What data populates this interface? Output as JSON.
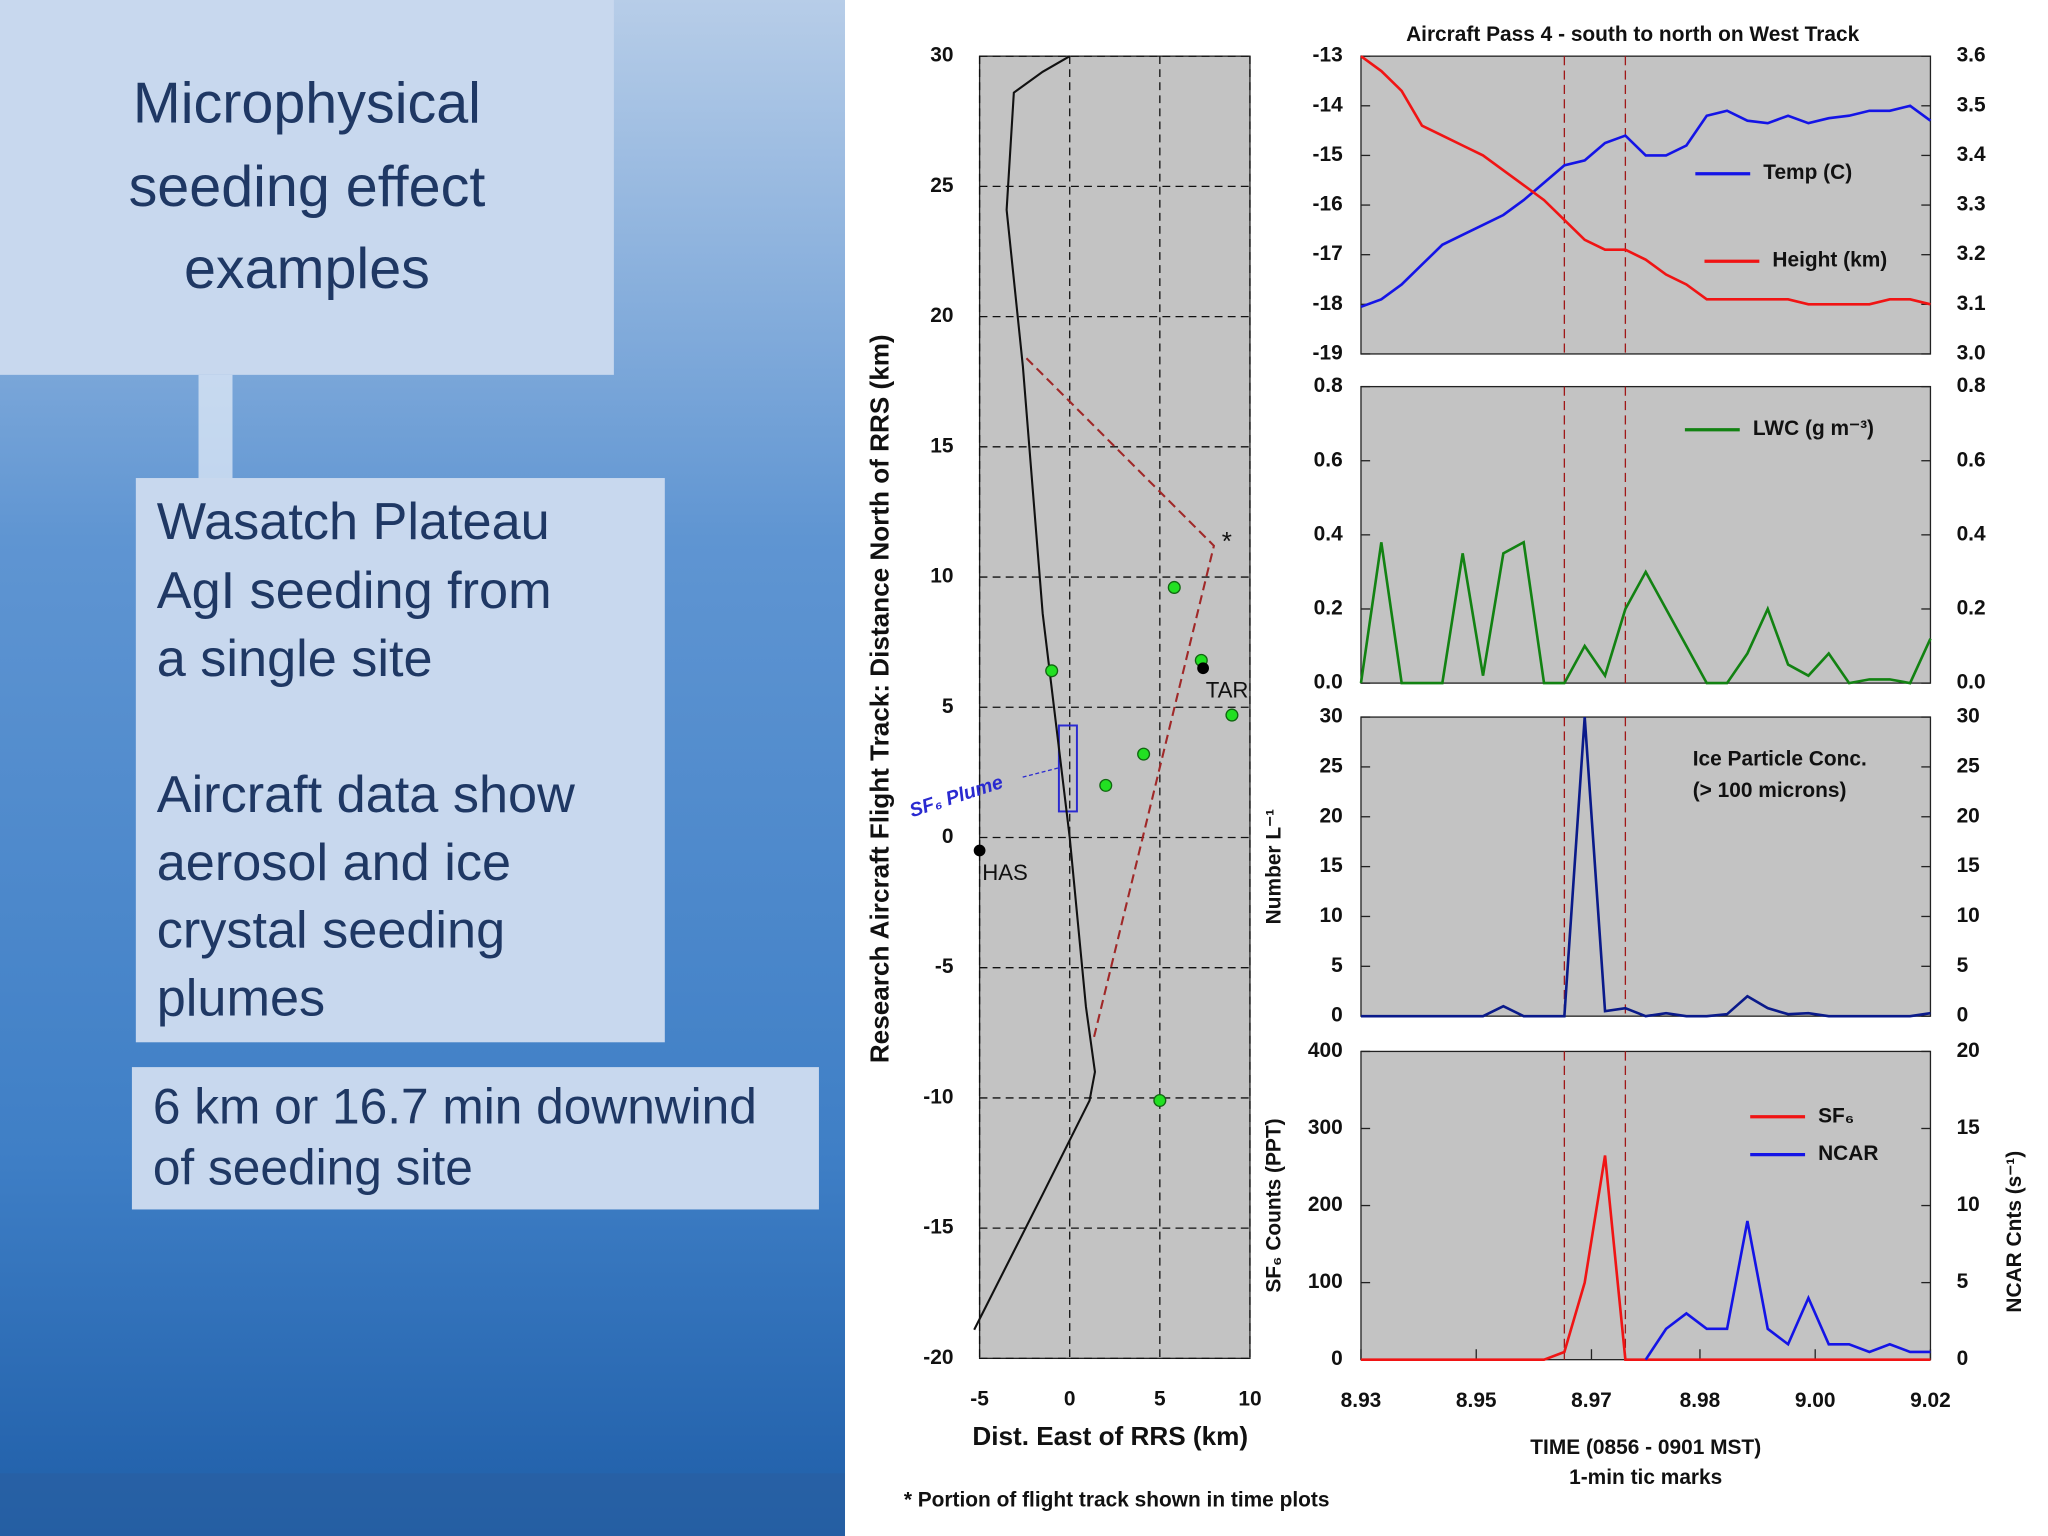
{
  "slide": {
    "title": [
      "Microphysical",
      "seeding effect",
      "examples"
    ],
    "box1": [
      "Wasatch Plateau",
      "AgI seeding from",
      "a single site"
    ],
    "box2": [
      "Aircraft data show",
      "aerosol and ice",
      "crystal seeding",
      "plumes"
    ],
    "box3": [
      "6 km or 16.7 min downwind",
      "of seeding site"
    ],
    "footnote": "* Portion of flight track shown in time plots"
  },
  "chart_data": [
    {
      "type": "track",
      "ylabel": "Research Aircraft Flight Track: Distance North of RRS (km)",
      "xlabel": "Dist. East of RRS (km)",
      "xlim": [
        -5,
        10
      ],
      "ylim": [
        -20,
        30
      ],
      "xticks": [
        -5,
        0,
        5,
        10
      ],
      "yticks": [
        30,
        25,
        20,
        15,
        10,
        5,
        0,
        -5,
        -10,
        -15,
        -20
      ],
      "grid": true,
      "series": [
        {
          "style": "line",
          "color": "#111111",
          "x": [
            -5.3,
            -1.5,
            1.1,
            1.4,
            0.9,
            0,
            -1.5,
            -2.6,
            -3.5,
            -3.1,
            -1.5,
            0
          ],
          "values": [
            -18.9,
            -13.7,
            -10.1,
            -9.0,
            -6.5,
            0,
            8.6,
            18.1,
            24.1,
            28.6,
            29.4,
            30
          ]
        },
        {
          "style": "dashed",
          "color": "#a02828",
          "x": [
            -2.4,
            8,
            1.3
          ],
          "values": [
            18.4,
            11.2,
            -7.8
          ],
          "vertex_label": "*"
        },
        {
          "style": "points",
          "color": "#22e022",
          "x": [
            -1,
            5.8,
            7.3,
            4.1,
            2,
            9,
            5
          ],
          "values": [
            6.4,
            9.6,
            6.8,
            3.2,
            2,
            4.7,
            -10.1
          ]
        }
      ],
      "sites": [
        {
          "label": "HAS",
          "x": -5,
          "y": -0.5
        },
        {
          "label": "TAR",
          "x": 7.4,
          "y": 6.5
        }
      ],
      "plume": {
        "label": "SF₆ Plume",
        "x": [
          -0.6,
          0.4
        ],
        "y": [
          1.0,
          4.3
        ]
      }
    },
    {
      "type": "timeseries",
      "title": "Aircraft Pass 4 - south to north on West Track",
      "x": [
        8.933,
        8.936,
        8.939,
        8.942,
        8.945,
        8.948,
        8.951,
        8.954,
        8.957,
        8.96,
        8.963,
        8.966,
        8.969,
        8.972,
        8.975,
        8.978,
        8.981,
        8.984,
        8.987,
        8.99,
        8.993,
        8.996,
        8.999,
        9.002,
        9.005,
        9.008,
        9.011,
        9.014,
        9.017
      ],
      "xlim": [
        8.933,
        9.017
      ],
      "ylim": [
        -19,
        -13
      ],
      "yticks": [
        -13,
        -14,
        -15,
        -16,
        -17,
        -18,
        -19
      ],
      "y2lim": [
        3.0,
        3.6
      ],
      "y2ticks": [
        3.6,
        3.5,
        3.4,
        3.3,
        3.2,
        3.1,
        {
          "value": 3.0,
          "label": "3.0"
        }
      ],
      "markers": [
        8.963,
        8.972
      ],
      "series": [
        {
          "name": "Temp (C)",
          "color": "#1414e6",
          "values": [
            -18.05,
            -17.9,
            -17.6,
            -17.2,
            -16.8,
            -16.6,
            -16.4,
            -16.2,
            -15.9,
            -15.55,
            -15.2,
            -15.1,
            -14.75,
            -14.6,
            -15.0,
            -15.0,
            -14.8,
            -14.2,
            -14.1,
            -14.3,
            -14.35,
            -14.2,
            -14.35,
            -14.25,
            -14.2,
            -14.1,
            -14.1,
            -14.0,
            -14.3
          ]
        },
        {
          "name": "Height (km)",
          "color": "#f01414",
          "axis": "y2",
          "values": [
            3.6,
            3.57,
            3.53,
            3.46,
            3.44,
            3.42,
            3.4,
            3.37,
            3.34,
            3.31,
            3.27,
            3.23,
            3.21,
            3.21,
            3.19,
            3.16,
            3.14,
            3.11,
            3.11,
            3.11,
            3.11,
            3.11,
            3.1,
            3.1,
            3.1,
            3.1,
            3.11,
            3.11,
            3.1
          ]
        }
      ]
    },
    {
      "type": "timeseries",
      "x": [
        8.933,
        8.936,
        8.939,
        8.942,
        8.945,
        8.948,
        8.951,
        8.954,
        8.957,
        8.96,
        8.963,
        8.966,
        8.969,
        8.972,
        8.975,
        8.978,
        8.981,
        8.984,
        8.987,
        8.99,
        8.993,
        8.996,
        8.999,
        9.002,
        9.005,
        9.008,
        9.011,
        9.014,
        9.017
      ],
      "xlim": [
        8.933,
        9.017
      ],
      "ylim": [
        0,
        0.8
      ],
      "yticks": [
        0.8,
        0.6,
        0.4,
        0.2,
        {
          "value": 0,
          "label": "0.0"
        }
      ],
      "y2lim": [
        0,
        0.8
      ],
      "y2ticks": [
        0.8,
        0.6,
        0.4,
        0.2,
        {
          "value": 0,
          "label": "0.0"
        }
      ],
      "markers": [
        8.963,
        8.972
      ],
      "series": [
        {
          "name": "LWC (g m⁻³)",
          "color": "#128212",
          "values": [
            0,
            0.38,
            0,
            0,
            0,
            0.35,
            0.02,
            0.35,
            0.38,
            0,
            0,
            0.1,
            0.02,
            0.2,
            0.3,
            0.2,
            0.1,
            0,
            0,
            0.08,
            0.2,
            0.05,
            0.02,
            0.08,
            0,
            0.01,
            0.01,
            0,
            0.12
          ]
        }
      ]
    },
    {
      "type": "timeseries",
      "ylabel": "Number L⁻¹",
      "annotations": [
        "Ice Particle Conc.",
        "(> 100 microns)"
      ],
      "x": [
        8.933,
        8.936,
        8.939,
        8.942,
        8.945,
        8.948,
        8.951,
        8.954,
        8.957,
        8.96,
        8.963,
        8.966,
        8.969,
        8.972,
        8.975,
        8.978,
        8.981,
        8.984,
        8.987,
        8.99,
        8.993,
        8.996,
        8.999,
        9.002,
        9.005,
        9.008,
        9.011,
        9.014,
        9.017
      ],
      "xlim": [
        8.933,
        9.017
      ],
      "ylim": [
        0,
        30
      ],
      "yticks": [
        30,
        25,
        20,
        15,
        10,
        5,
        0
      ],
      "y2lim": [
        0,
        30
      ],
      "y2ticks": [
        30,
        25,
        20,
        15,
        10,
        5,
        0
      ],
      "markers": [
        8.963,
        8.972
      ],
      "series": [
        {
          "color": "#0a1a8a",
          "values": [
            0,
            0,
            0,
            0,
            0,
            0,
            0,
            1,
            0,
            0,
            0,
            30,
            0.5,
            0.8,
            0,
            0.3,
            0,
            0,
            0.2,
            2,
            0.8,
            0.2,
            0.3,
            0,
            0,
            0,
            0,
            0,
            0.3
          ]
        }
      ]
    },
    {
      "type": "timeseries",
      "ylabel": "SF₆ Counts (PPT)",
      "y2label": "NCAR Cnts (s⁻¹)",
      "xlabel": [
        "TIME (0856 - 0901 MST)",
        "1-min tic marks"
      ],
      "x": [
        8.933,
        8.936,
        8.939,
        8.942,
        8.945,
        8.948,
        8.951,
        8.954,
        8.957,
        8.96,
        8.963,
        8.966,
        8.969,
        8.972,
        8.975,
        8.978,
        8.981,
        8.984,
        8.987,
        8.99,
        8.993,
        8.996,
        8.999,
        9.002,
        9.005,
        9.008,
        9.011,
        9.014,
        9.017
      ],
      "xlim": [
        8.933,
        9.017
      ],
      "xticks": [
        {
          "value": 8.933,
          "label": "8.93"
        },
        8.95,
        {
          "value": 8.967,
          "label": "8.97"
        },
        {
          "value": 8.983,
          "label": "8.98"
        },
        {
          "value": 9.0,
          "label": "9.00"
        },
        {
          "value": 9.017,
          "label": "9.02"
        }
      ],
      "ylim": [
        0,
        400
      ],
      "yticks": [
        400,
        300,
        200,
        100,
        0
      ],
      "y2lim": [
        0,
        20
      ],
      "y2ticks": [
        20,
        15,
        10,
        5,
        0
      ],
      "markers": [
        8.963,
        8.972
      ],
      "series": [
        {
          "name": "SF₆",
          "color": "#f01414",
          "values": [
            0,
            0,
            0,
            0,
            0,
            0,
            0,
            0,
            0,
            0,
            10,
            100,
            265,
            0,
            0,
            0,
            0,
            0,
            0,
            0,
            0,
            0,
            0,
            0,
            0,
            0,
            0,
            0,
            0
          ]
        },
        {
          "name": "NCAR",
          "color": "#1414e6",
          "axis": "y2",
          "values": [
            null,
            null,
            null,
            null,
            null,
            null,
            null,
            null,
            null,
            null,
            null,
            null,
            null,
            null,
            0,
            2,
            3,
            2,
            2,
            9,
            2,
            1,
            4,
            1,
            1,
            0.5,
            1,
            0.5,
            0.5
          ]
        }
      ]
    }
  ]
}
